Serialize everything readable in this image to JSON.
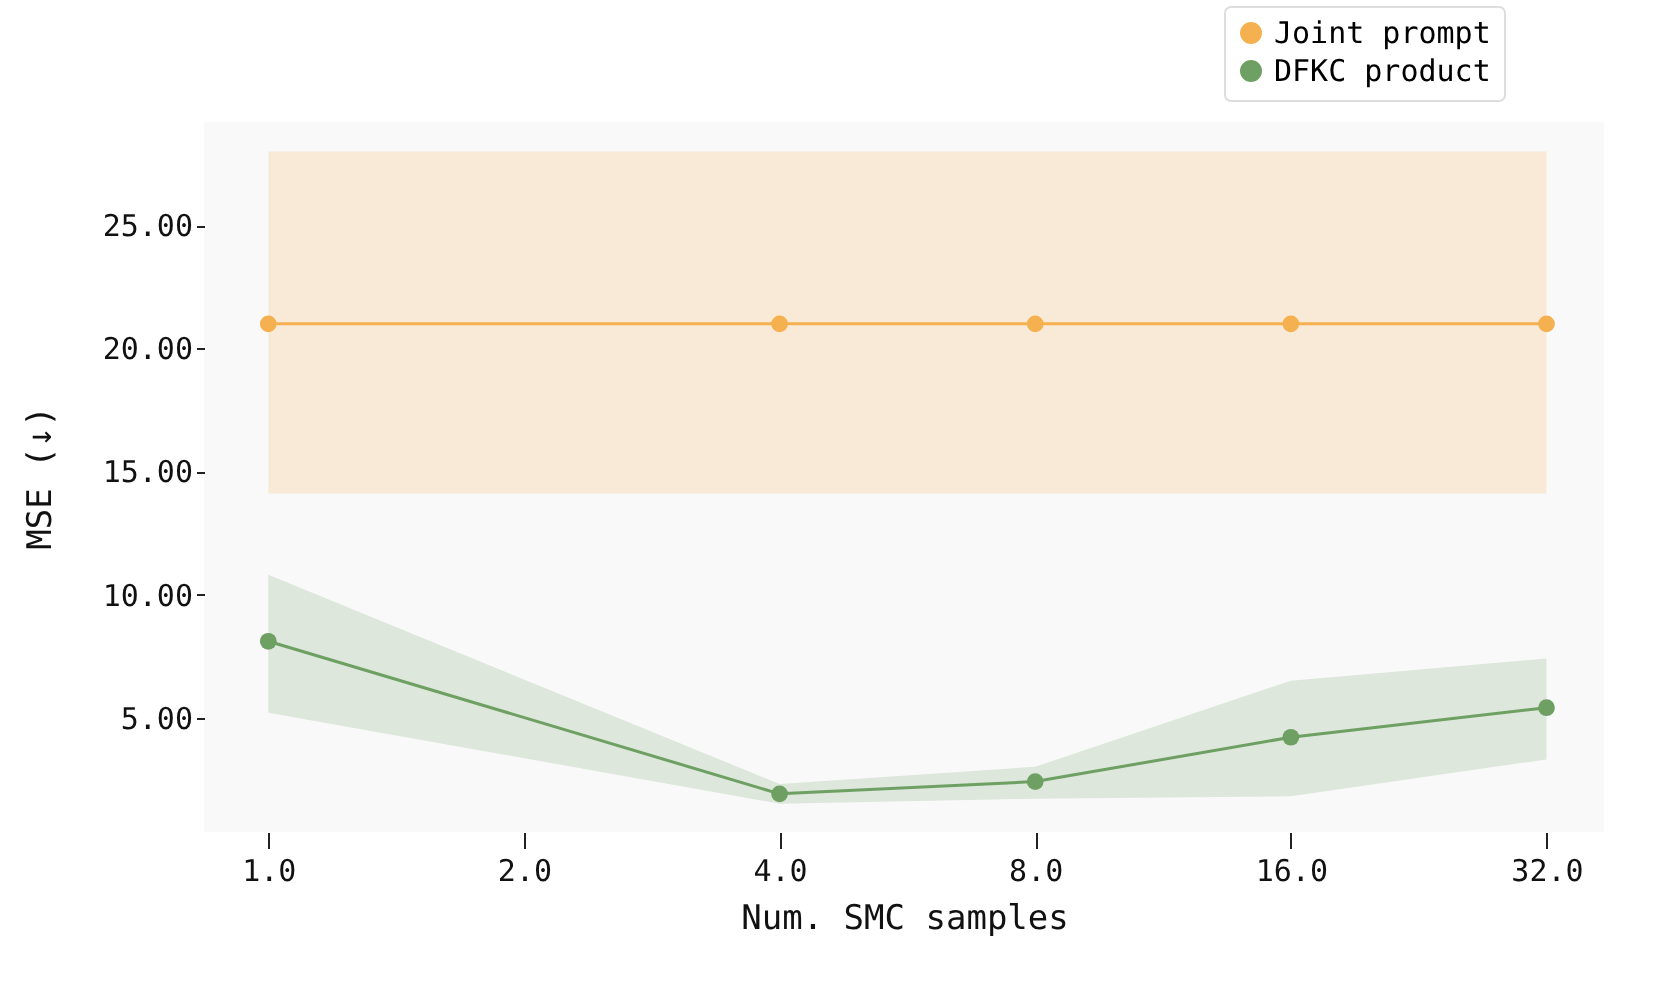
{
  "chart_data": {
    "type": "line",
    "xlabel": "Num. SMC samples",
    "ylabel": "MSE (↓)",
    "x": [
      1,
      4,
      8,
      16,
      32
    ],
    "log": "x",
    "xlim": [
      0.84,
      37.4
    ],
    "xticks": [
      {
        "value": 1,
        "label": "1.0"
      },
      {
        "value": 2,
        "label": "2.0"
      },
      {
        "value": 4,
        "label": "4.0"
      },
      {
        "value": 8,
        "label": "8.0"
      },
      {
        "value": 16,
        "label": "16.0"
      },
      {
        "value": 32,
        "label": "32.0"
      }
    ],
    "ylim": [
      0.35,
      29.2
    ],
    "yticks": [
      {
        "value": 5,
        "label": "5.00"
      },
      {
        "value": 10,
        "label": "10.00"
      },
      {
        "value": 15,
        "label": "15.00"
      },
      {
        "value": 20,
        "label": "20.00"
      },
      {
        "value": 25,
        "label": "25.00"
      }
    ],
    "series": [
      {
        "name": "Joint prompt",
        "color": "#f5b04f",
        "values": [
          21.0,
          21.0,
          21.0,
          21.0,
          21.0
        ],
        "lower": [
          14.1,
          14.1,
          14.1,
          14.1,
          14.1
        ],
        "upper": [
          28.0,
          28.0,
          28.0,
          28.0,
          28.0
        ]
      },
      {
        "name": "DFKC product",
        "color": "#6e9f63",
        "values": [
          8.1,
          1.9,
          2.4,
          4.2,
          5.4
        ],
        "lower": [
          5.2,
          1.5,
          1.7,
          1.8,
          3.3
        ],
        "upper": [
          10.8,
          2.3,
          3.0,
          6.5,
          7.4
        ]
      }
    ],
    "grid": false,
    "legend": "top right",
    "marker": "circle",
    "line_style": "solid"
  }
}
